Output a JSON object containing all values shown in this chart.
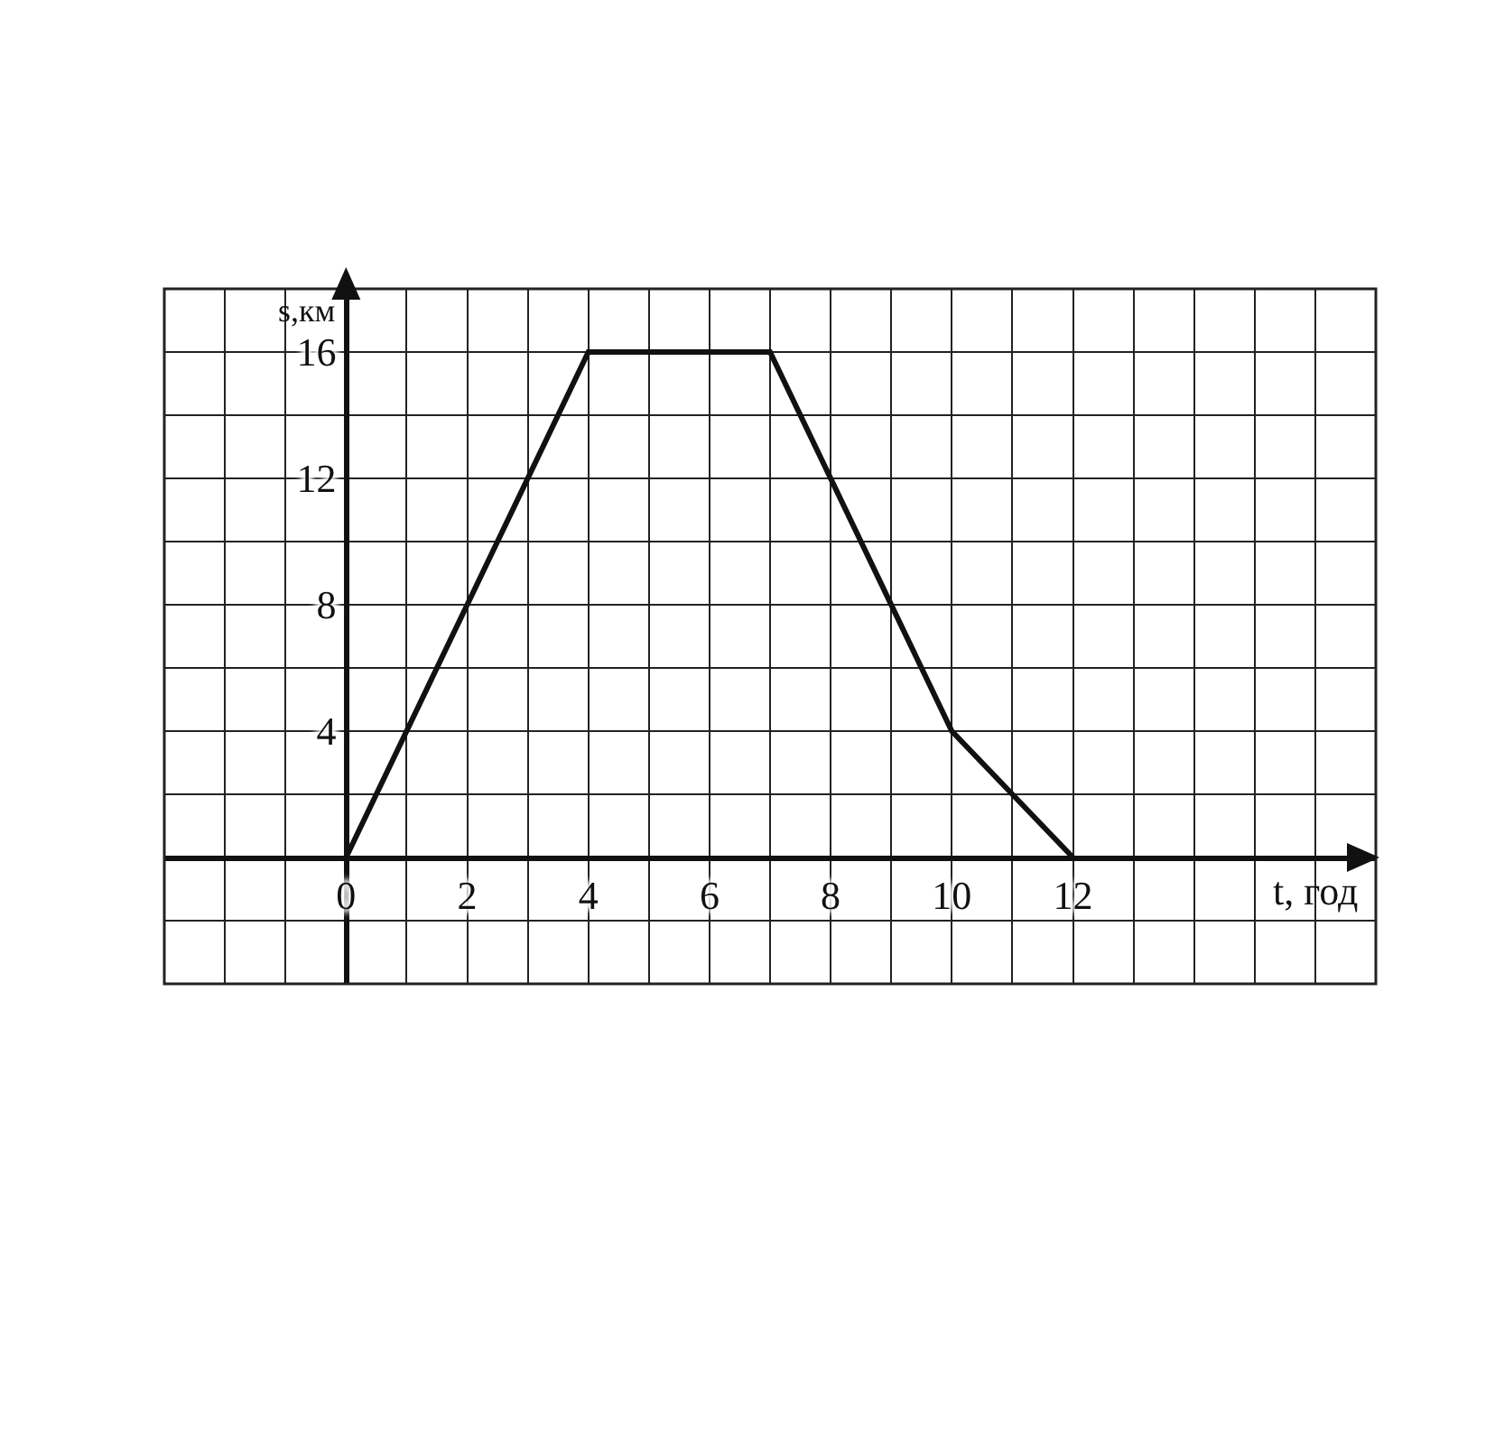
{
  "chart_data": {
    "type": "line",
    "xlabel": "t, год",
    "ylabel": "s,км",
    "x": [
      0,
      4,
      7,
      10,
      12
    ],
    "series": [
      {
        "color": "#111111",
        "values": [
          0,
          16,
          16,
          4,
          0
        ]
      }
    ],
    "xlim": [
      -3,
      17
    ],
    "ylim": [
      -4,
      18
    ],
    "xticks": [
      {
        "value": -3,
        "label": null
      },
      {
        "value": -2,
        "label": null
      },
      {
        "value": -1,
        "label": null
      },
      0,
      {
        "value": 1,
        "label": null
      },
      2,
      {
        "value": 3,
        "label": null
      },
      4,
      {
        "value": 5,
        "label": null
      },
      6,
      {
        "value": 7,
        "label": null
      },
      8,
      {
        "value": 9,
        "label": null
      },
      10,
      {
        "value": 11,
        "label": null
      },
      12,
      {
        "value": 13,
        "label": null
      },
      {
        "value": 14,
        "label": null
      },
      {
        "value": 15,
        "label": null
      },
      {
        "value": 16,
        "label": null
      },
      {
        "value": 17,
        "label": null
      }
    ],
    "yticks": [
      {
        "value": -4,
        "label": null
      },
      {
        "value": -2,
        "label": null
      },
      {
        "value": 0,
        "label": null
      },
      {
        "value": 2,
        "label": null
      },
      4,
      {
        "value": 6,
        "label": null
      },
      8,
      {
        "value": 10,
        "label": null
      },
      12,
      {
        "value": 14,
        "label": null
      },
      16,
      {
        "value": 18,
        "label": null
      }
    ],
    "grid": true,
    "marker": "none",
    "line_style": "solid"
  }
}
